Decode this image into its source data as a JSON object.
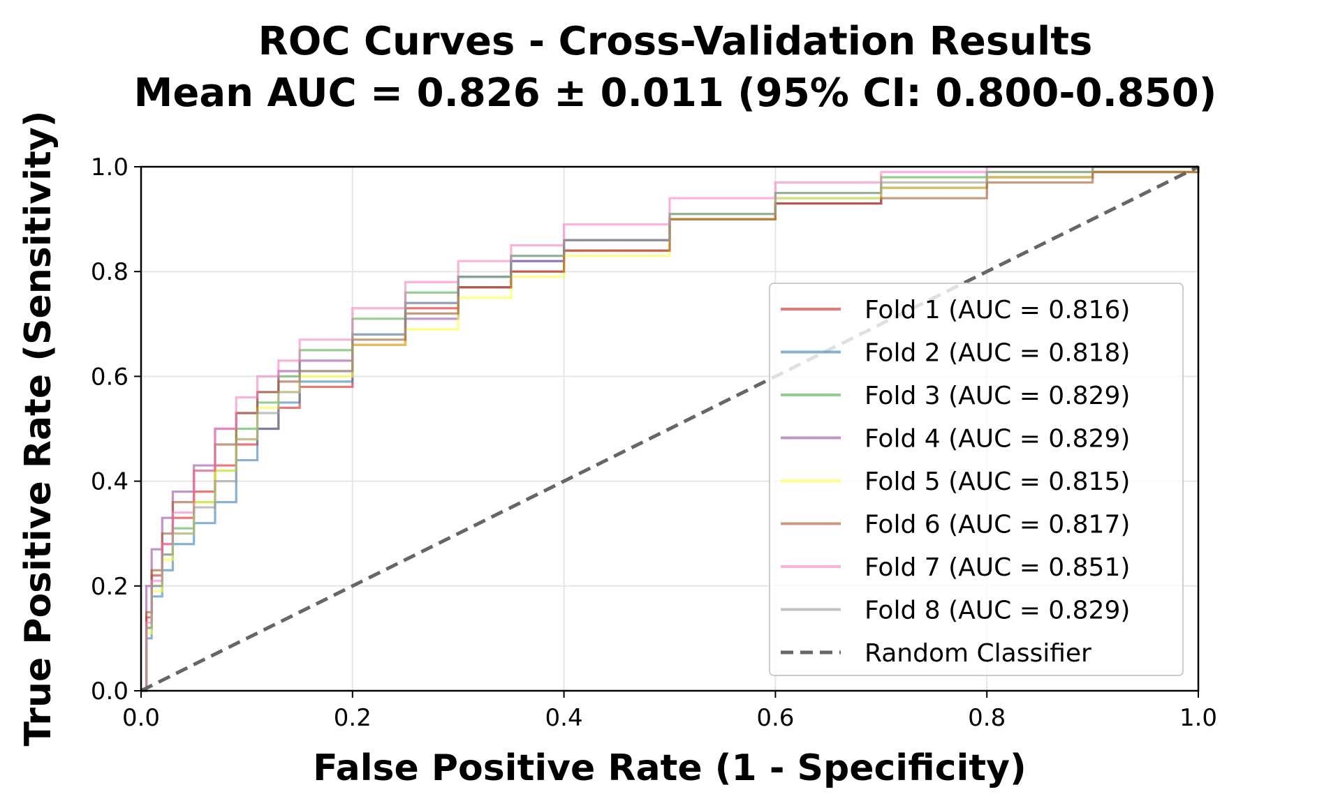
{
  "chart_data": {
    "type": "line",
    "title": "ROC Curves - Cross-Validation Results",
    "subtitle": "Mean AUC = 0.826 ± 0.011 (95% CI: 0.800-0.850)",
    "xlabel": "False Positive Rate (1 - Specificity)",
    "ylabel": "True Positive Rate (Sensitivity)",
    "xlim": [
      0,
      1
    ],
    "ylim": [
      0,
      1
    ],
    "xticks": [
      "0.0",
      "0.2",
      "0.4",
      "0.6",
      "0.8",
      "1.0"
    ],
    "yticks": [
      "0.0",
      "0.2",
      "0.4",
      "0.6",
      "0.8",
      "1.0"
    ],
    "grid": true,
    "legend_position": "lower-right",
    "series": [
      {
        "name": "Fold 1 (AUC = 0.816)",
        "color": "#e41a1c",
        "x": [
          0,
          0.005,
          0.01,
          0.02,
          0.03,
          0.05,
          0.07,
          0.09,
          0.11,
          0.13,
          0.15,
          0.2,
          0.25,
          0.3,
          0.35,
          0.4,
          0.5,
          0.6,
          0.7,
          0.8,
          0.9,
          1.0
        ],
        "y": [
          0,
          0.14,
          0.22,
          0.28,
          0.33,
          0.38,
          0.43,
          0.47,
          0.5,
          0.54,
          0.58,
          0.66,
          0.73,
          0.77,
          0.8,
          0.84,
          0.9,
          0.93,
          0.96,
          0.98,
          0.99,
          1.0
        ]
      },
      {
        "name": "Fold 2 (AUC = 0.818)",
        "color": "#377eb8",
        "x": [
          0,
          0.005,
          0.01,
          0.02,
          0.03,
          0.05,
          0.07,
          0.09,
          0.11,
          0.13,
          0.15,
          0.2,
          0.25,
          0.3,
          0.35,
          0.4,
          0.5,
          0.6,
          0.7,
          0.8,
          0.9,
          1.0
        ],
        "y": [
          0,
          0.1,
          0.18,
          0.23,
          0.28,
          0.32,
          0.36,
          0.44,
          0.5,
          0.55,
          0.59,
          0.68,
          0.74,
          0.79,
          0.82,
          0.86,
          0.9,
          0.94,
          0.96,
          0.98,
          0.99,
          1.0
        ]
      },
      {
        "name": "Fold 3 (AUC = 0.829)",
        "color": "#4daf4a",
        "x": [
          0,
          0.005,
          0.01,
          0.02,
          0.03,
          0.05,
          0.07,
          0.09,
          0.11,
          0.13,
          0.15,
          0.2,
          0.25,
          0.3,
          0.35,
          0.4,
          0.5,
          0.6,
          0.7,
          0.8,
          0.9,
          1.0
        ],
        "y": [
          0,
          0.12,
          0.2,
          0.26,
          0.31,
          0.36,
          0.42,
          0.5,
          0.55,
          0.6,
          0.65,
          0.71,
          0.76,
          0.79,
          0.83,
          0.86,
          0.91,
          0.95,
          0.98,
          0.99,
          1.0,
          1.0
        ]
      },
      {
        "name": "Fold 4 (AUC = 0.829)",
        "color": "#984ea3",
        "x": [
          0,
          0.005,
          0.01,
          0.02,
          0.03,
          0.05,
          0.07,
          0.09,
          0.11,
          0.13,
          0.15,
          0.2,
          0.25,
          0.3,
          0.35,
          0.4,
          0.5,
          0.6,
          0.7,
          0.8,
          0.9,
          1.0
        ],
        "y": [
          0,
          0.2,
          0.27,
          0.33,
          0.38,
          0.43,
          0.5,
          0.53,
          0.57,
          0.61,
          0.63,
          0.66,
          0.71,
          0.77,
          0.82,
          0.86,
          0.9,
          0.93,
          0.96,
          0.98,
          0.99,
          1.0
        ]
      },
      {
        "name": "Fold 5 (AUC = 0.815)",
        "color": "#ffff33",
        "x": [
          0,
          0.005,
          0.01,
          0.02,
          0.03,
          0.05,
          0.07,
          0.09,
          0.11,
          0.13,
          0.15,
          0.2,
          0.25,
          0.3,
          0.35,
          0.4,
          0.5,
          0.6,
          0.7,
          0.8,
          0.9,
          1.0
        ],
        "y": [
          0,
          0.11,
          0.19,
          0.25,
          0.3,
          0.36,
          0.42,
          0.48,
          0.54,
          0.57,
          0.6,
          0.66,
          0.69,
          0.75,
          0.79,
          0.83,
          0.9,
          0.94,
          0.96,
          0.98,
          0.99,
          1.0
        ]
      },
      {
        "name": "Fold 6 (AUC = 0.817)",
        "color": "#a65628",
        "x": [
          0,
          0.005,
          0.01,
          0.02,
          0.03,
          0.05,
          0.07,
          0.09,
          0.11,
          0.13,
          0.15,
          0.2,
          0.25,
          0.3,
          0.35,
          0.4,
          0.5,
          0.6,
          0.7,
          0.8,
          0.9,
          1.0
        ],
        "y": [
          0,
          0.15,
          0.23,
          0.3,
          0.36,
          0.42,
          0.47,
          0.53,
          0.57,
          0.59,
          0.61,
          0.67,
          0.72,
          0.77,
          0.8,
          0.84,
          0.9,
          0.93,
          0.94,
          0.97,
          0.99,
          1.0
        ]
      },
      {
        "name": "Fold 7 (AUC = 0.851)",
        "color": "#f781bf",
        "x": [
          0,
          0.005,
          0.01,
          0.02,
          0.03,
          0.05,
          0.07,
          0.09,
          0.11,
          0.13,
          0.15,
          0.2,
          0.25,
          0.3,
          0.35,
          0.4,
          0.5,
          0.6,
          0.7,
          0.8,
          0.9,
          1.0
        ],
        "y": [
          0,
          0.13,
          0.21,
          0.28,
          0.34,
          0.42,
          0.5,
          0.56,
          0.6,
          0.63,
          0.67,
          0.73,
          0.78,
          0.82,
          0.85,
          0.89,
          0.94,
          0.97,
          0.99,
          1.0,
          1.0,
          1.0
        ]
      },
      {
        "name": "Fold 8 (AUC = 0.829)",
        "color": "#999999",
        "x": [
          0,
          0.005,
          0.01,
          0.02,
          0.03,
          0.05,
          0.07,
          0.09,
          0.11,
          0.13,
          0.15,
          0.2,
          0.25,
          0.3,
          0.35,
          0.4,
          0.5,
          0.6,
          0.7,
          0.8,
          0.9,
          1.0
        ],
        "y": [
          0,
          0.12,
          0.2,
          0.26,
          0.3,
          0.35,
          0.4,
          0.48,
          0.53,
          0.57,
          0.61,
          0.68,
          0.74,
          0.79,
          0.83,
          0.86,
          0.91,
          0.95,
          0.97,
          0.99,
          1.0,
          1.0
        ]
      },
      {
        "name": "Random Classifier",
        "color": "#666666",
        "dashed": true,
        "x": [
          0,
          1
        ],
        "y": [
          0,
          1
        ]
      }
    ]
  }
}
